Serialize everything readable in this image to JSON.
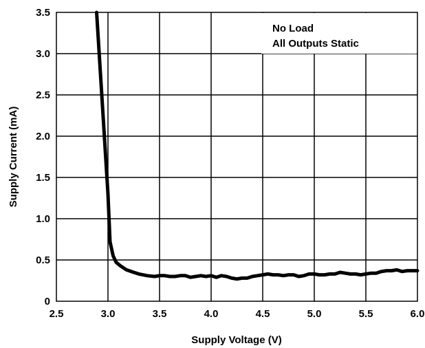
{
  "chart_data": {
    "type": "line",
    "title": "",
    "xlabel": "Supply Voltage (V)",
    "ylabel": "Supply Current (mA)",
    "xlim": [
      2.5,
      6.0
    ],
    "ylim": [
      0,
      3.5
    ],
    "grid": true,
    "x_ticks": [
      "2.5",
      "3.0",
      "3.5",
      "4.0",
      "4.5",
      "5.0",
      "5.5",
      "6.0"
    ],
    "y_ticks": [
      "0",
      "0.5",
      "1.0",
      "1.5",
      "2.0",
      "2.5",
      "3.0",
      "3.5"
    ],
    "annotations": [
      "No Load",
      "All Outputs Static"
    ],
    "series": [
      {
        "x": [
          2.89,
          2.95,
          3.0,
          3.02,
          3.05,
          3.08,
          3.12,
          3.18,
          3.25,
          3.3,
          3.38,
          3.45,
          3.5,
          3.55,
          3.6,
          3.65,
          3.7,
          3.75,
          3.8,
          3.85,
          3.9,
          3.95,
          4.0,
          4.05,
          4.1,
          4.15,
          4.2,
          4.25,
          4.3,
          4.35,
          4.4,
          4.45,
          4.5,
          4.55,
          4.6,
          4.65,
          4.7,
          4.75,
          4.8,
          4.85,
          4.9,
          4.95,
          5.0,
          5.05,
          5.1,
          5.15,
          5.2,
          5.25,
          5.3,
          5.35,
          5.4,
          5.45,
          5.5,
          5.55,
          5.6,
          5.65,
          5.7,
          5.75,
          5.8,
          5.85,
          5.9,
          6.0
        ],
        "y": [
          3.5,
          2.3,
          1.3,
          0.72,
          0.55,
          0.47,
          0.43,
          0.38,
          0.35,
          0.33,
          0.31,
          0.3,
          0.31,
          0.31,
          0.3,
          0.3,
          0.31,
          0.31,
          0.29,
          0.3,
          0.31,
          0.3,
          0.31,
          0.29,
          0.31,
          0.3,
          0.28,
          0.27,
          0.28,
          0.28,
          0.3,
          0.31,
          0.32,
          0.33,
          0.32,
          0.32,
          0.31,
          0.32,
          0.32,
          0.3,
          0.31,
          0.33,
          0.33,
          0.32,
          0.32,
          0.33,
          0.33,
          0.35,
          0.34,
          0.33,
          0.33,
          0.32,
          0.33,
          0.34,
          0.34,
          0.36,
          0.37,
          0.37,
          0.38,
          0.36,
          0.37,
          0.37
        ]
      }
    ]
  }
}
